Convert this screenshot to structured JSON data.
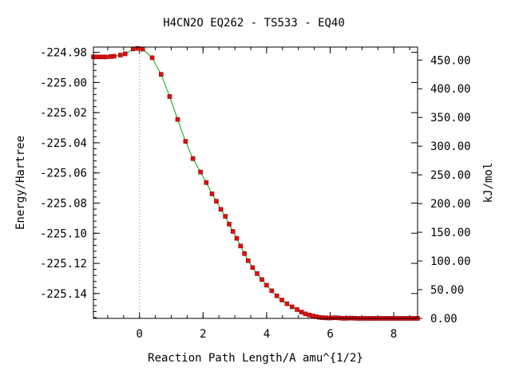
{
  "chart_data": {
    "type": "scatter",
    "title": "H4CN2O   EQ262 - TS533 - EQ40",
    "xlabel": "Reaction Path Length/A amu^{1/2}",
    "ylabel": "Energy/Hartree",
    "y2label": "kJ/mol",
    "xlim": [
      -1.45,
      8.75
    ],
    "ylim": [
      -225.1565,
      -224.9765
    ],
    "y2lim": [
      0.0,
      472.6
    ],
    "x_ticks": [
      "0",
      "2",
      "4",
      "6",
      "8"
    ],
    "x_tick_values": [
      0,
      2,
      4,
      6,
      8
    ],
    "y_ticks": [
      "-224.98",
      "-225.00",
      "-225.02",
      "-225.04",
      "-225.06",
      "-225.08",
      "-225.10",
      "-225.12",
      "-225.14"
    ],
    "y_tick_values": [
      -224.98,
      -225.0,
      -225.02,
      -225.04,
      -225.06,
      -225.08,
      -225.1,
      -225.12,
      -225.14
    ],
    "y2_ticks": [
      "450.00",
      "400.00",
      "350.00",
      "300.00",
      "250.00",
      "200.00",
      "150.00",
      "100.00",
      "50.00",
      "0.00"
    ],
    "y2_tick_values": [
      450,
      400,
      350,
      300,
      250,
      200,
      150,
      100,
      50,
      0
    ],
    "ts_marker_x": 0,
    "line_color": "#00aa00",
    "marker_color": "#e01010",
    "marker_edge_color": "#8b0000",
    "series": [
      {
        "x": [
          -1.45,
          -1.35,
          -1.25,
          -1.15,
          -1.05,
          -0.9,
          -0.8,
          -0.6,
          -0.45,
          -0.2,
          -0.05,
          0.1,
          0.4,
          0.68,
          0.95,
          1.2,
          1.45,
          1.68,
          1.92,
          2.1,
          2.28,
          2.42,
          2.56,
          2.7,
          2.82,
          2.94,
          3.06,
          3.18,
          3.3,
          3.42,
          3.56,
          3.7,
          3.85,
          4.0,
          4.16,
          4.32,
          4.48,
          4.64,
          4.8,
          4.96,
          5.1,
          5.22,
          5.34,
          5.46,
          5.56,
          5.66,
          5.76,
          5.86,
          5.96,
          6.06,
          6.16,
          6.26,
          6.36,
          6.46,
          6.56,
          6.66,
          6.76,
          6.86,
          6.96,
          7.06,
          7.16,
          7.26,
          7.36,
          7.46,
          7.56,
          7.66,
          7.76,
          7.86,
          7.96,
          8.06,
          8.16,
          8.26,
          8.36,
          8.46,
          8.56,
          8.66,
          8.75
        ],
        "y": [
          -224.983,
          -224.983,
          -224.983,
          -224.983,
          -224.983,
          -224.9828,
          -224.9826,
          -224.9818,
          -224.981,
          -224.9777,
          -224.9774,
          -224.9778,
          -224.9836,
          -224.9946,
          -225.0093,
          -225.0245,
          -225.039,
          -225.0505,
          -225.0594,
          -225.0664,
          -225.0739,
          -225.0788,
          -225.0842,
          -225.0888,
          -225.094,
          -225.0988,
          -225.1034,
          -225.1085,
          -225.1135,
          -225.1182,
          -225.1228,
          -225.1268,
          -225.1307,
          -225.1345,
          -225.1382,
          -225.1415,
          -225.1443,
          -225.1468,
          -225.1488,
          -225.1507,
          -225.1523,
          -225.1535,
          -225.1543,
          -225.1549,
          -225.1554,
          -225.1558,
          -225.156,
          -225.1562,
          -225.1563,
          -225.1562,
          -225.1561,
          -225.1562,
          -225.1564,
          -225.1565,
          -225.1564,
          -225.1563,
          -225.1564,
          -225.1565,
          -225.1565,
          -225.1565,
          -225.1565,
          -225.1565,
          -225.1565,
          -225.1565,
          -225.1565,
          -225.1565,
          -225.1565,
          -225.1565,
          -225.1565,
          -225.1565,
          -225.1565,
          -225.1565,
          -225.1565,
          -225.1565,
          -225.1565,
          -225.1565,
          -225.1565
        ]
      }
    ]
  }
}
